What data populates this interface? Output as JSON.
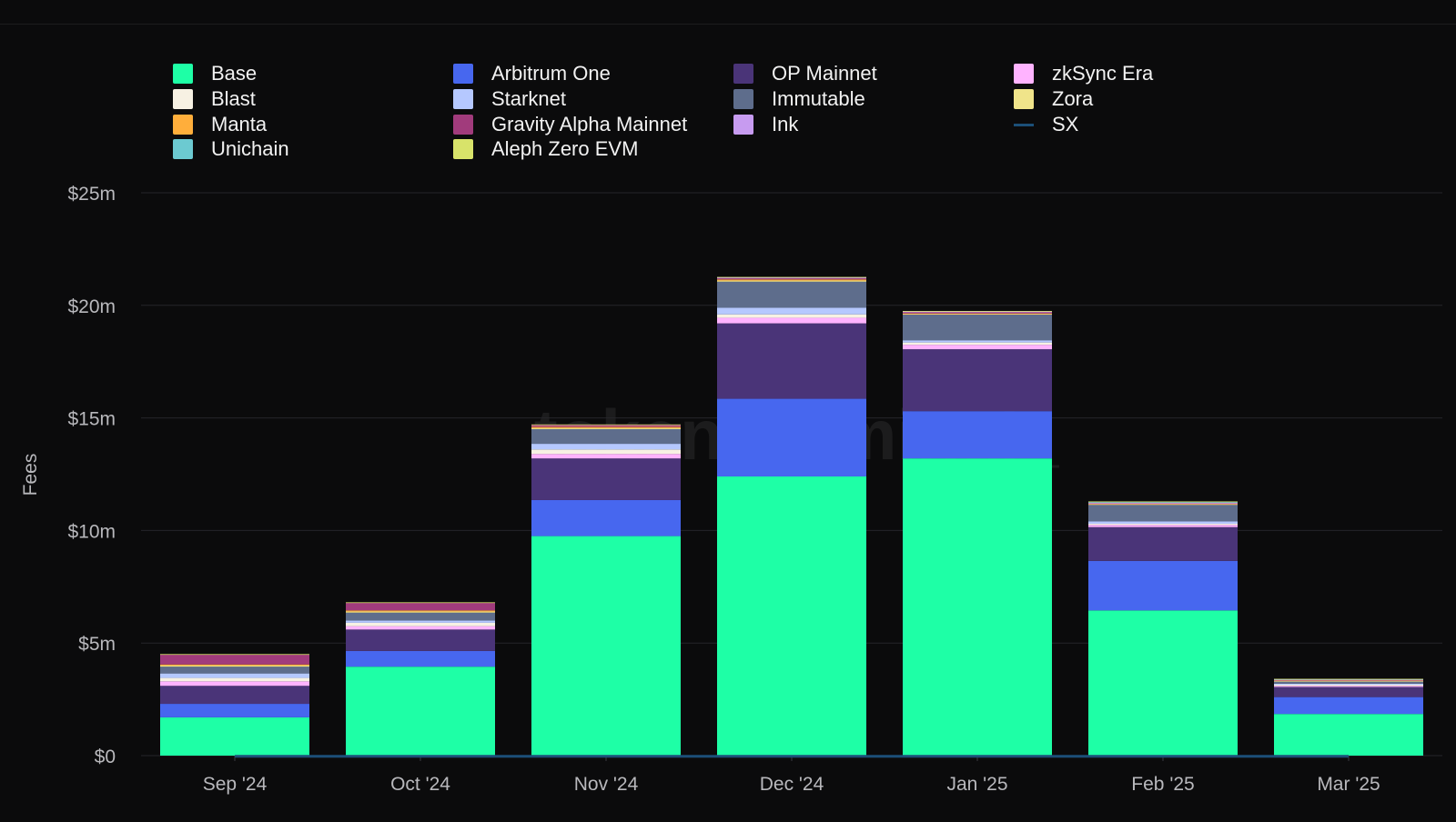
{
  "chart_data": {
    "type": "bar",
    "stacked": true,
    "title": "",
    "ylabel": "Fees",
    "xlabel": "",
    "watermark": "token terminal_",
    "ylim": [
      0,
      25
    ],
    "yticks": [
      0,
      5,
      10,
      15,
      20,
      25
    ],
    "ytick_labels": [
      "$0",
      "$5m",
      "$10m",
      "$15m",
      "$20m",
      "$25m"
    ],
    "grid": true,
    "legend_position": "top",
    "categories": [
      "Sep '24",
      "Oct '24",
      "Nov '24",
      "Dec '24",
      "Jan '25",
      "Feb '25",
      "Mar '25"
    ],
    "series": [
      {
        "name": "Base",
        "color": "#1effa6",
        "values": [
          1.7,
          3.95,
          9.75,
          12.4,
          13.2,
          6.45,
          1.85
        ]
      },
      {
        "name": "Arbitrum One",
        "color": "#4767ef",
        "values": [
          0.6,
          0.7,
          1.6,
          3.45,
          2.1,
          2.2,
          0.75
        ]
      },
      {
        "name": "OP Mainnet",
        "color": "#4a3478",
        "values": [
          0.8,
          0.95,
          1.85,
          3.35,
          2.75,
          1.5,
          0.45
        ]
      },
      {
        "name": "zkSync Era",
        "color": "#ffb3ff",
        "values": [
          0.2,
          0.15,
          0.2,
          0.25,
          0.2,
          0.1,
          0.05
        ]
      },
      {
        "name": "Blast",
        "color": "#f7f1e3",
        "values": [
          0.15,
          0.15,
          0.2,
          0.15,
          0.1,
          0.05,
          0.05
        ]
      },
      {
        "name": "Starknet",
        "color": "#b5c8ff",
        "values": [
          0.2,
          0.1,
          0.25,
          0.3,
          0.1,
          0.1,
          0.05
        ]
      },
      {
        "name": "Immutable",
        "color": "#5e6d8c",
        "values": [
          0.3,
          0.35,
          0.65,
          1.15,
          1.15,
          0.75,
          0.1
        ]
      },
      {
        "name": "Zora",
        "color": "#f0e48a",
        "values": [
          0.05,
          0.05,
          0.05,
          0.05,
          0.02,
          0.02,
          0.02
        ]
      },
      {
        "name": "Manta",
        "color": "#ffae3b",
        "values": [
          0.05,
          0.05,
          0.05,
          0.05,
          0.02,
          0.02,
          0.02
        ]
      },
      {
        "name": "Gravity Alpha Mainnet",
        "color": "#a13b7c",
        "values": [
          0.45,
          0.35,
          0.1,
          0.05,
          0.05,
          0.02,
          0.02
        ]
      },
      {
        "name": "Ink",
        "color": "#c79bf0",
        "values": [
          0,
          0,
          0,
          0.05,
          0.05,
          0.02,
          0.02
        ]
      },
      {
        "name": "Unichain",
        "color": "#6ccad1",
        "values": [
          0,
          0,
          0,
          0,
          0,
          0.05,
          0.02
        ]
      },
      {
        "name": "Aleph Zero EVM",
        "color": "#d8e36a",
        "values": [
          0.01,
          0.01,
          0.01,
          0.01,
          0.01,
          0.01,
          0.01
        ]
      },
      {
        "name": "SX",
        "color": "#1c4f78",
        "type": "line",
        "values": [
          0.01,
          0.01,
          0.01,
          0.01,
          0.01,
          0.01,
          0.01
        ]
      }
    ]
  },
  "legend": {
    "columns": [
      [
        "Base",
        "Blast",
        "Manta",
        "Unichain"
      ],
      [
        "Arbitrum One",
        "Starknet",
        "Gravity Alpha Mainnet",
        "Aleph Zero EVM"
      ],
      [
        "OP Mainnet",
        "Immutable",
        "Ink"
      ],
      [
        "zkSync Era",
        "Zora",
        "SX"
      ]
    ]
  }
}
